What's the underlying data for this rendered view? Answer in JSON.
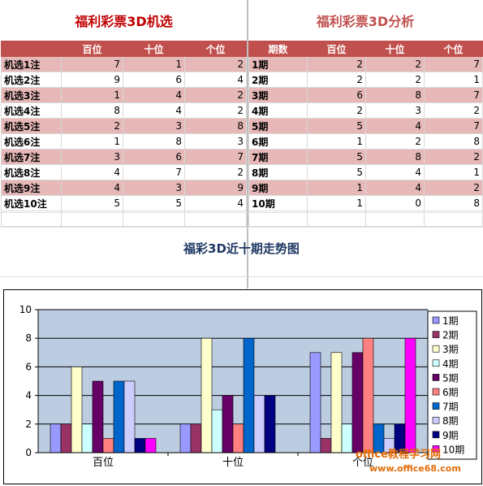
{
  "left_panel": {
    "title": "福利彩票3D机选",
    "columns": [
      "",
      "百位",
      "十位",
      "个位"
    ],
    "rows": [
      {
        "label": "机选1注",
        "values": [
          7,
          1,
          2
        ]
      },
      {
        "label": "机选2注",
        "values": [
          9,
          6,
          4
        ]
      },
      {
        "label": "机选3注",
        "values": [
          1,
          4,
          2
        ]
      },
      {
        "label": "机选4注",
        "values": [
          8,
          4,
          2
        ]
      },
      {
        "label": "机选5注",
        "values": [
          2,
          3,
          8
        ]
      },
      {
        "label": "机选6注",
        "values": [
          1,
          8,
          3
        ]
      },
      {
        "label": "机选7注",
        "values": [
          3,
          6,
          7
        ]
      },
      {
        "label": "机选8注",
        "values": [
          4,
          7,
          2
        ]
      },
      {
        "label": "机选9注",
        "values": [
          4,
          3,
          9
        ]
      },
      {
        "label": "机选10注",
        "values": [
          5,
          5,
          4
        ]
      }
    ]
  },
  "right_panel": {
    "title": "福利彩票3D分析",
    "columns": [
      "期数",
      "百位",
      "十位",
      "个位"
    ],
    "rows": [
      {
        "label": "1期",
        "values": [
          2,
          2,
          7
        ]
      },
      {
        "label": "2期",
        "values": [
          2,
          2,
          1
        ]
      },
      {
        "label": "3期",
        "values": [
          6,
          8,
          7
        ]
      },
      {
        "label": "4期",
        "values": [
          2,
          3,
          2
        ]
      },
      {
        "label": "5期",
        "values": [
          5,
          4,
          7
        ]
      },
      {
        "label": "6期",
        "values": [
          1,
          2,
          8
        ]
      },
      {
        "label": "7期",
        "values": [
          5,
          8,
          2
        ]
      },
      {
        "label": "8期",
        "values": [
          5,
          4,
          1
        ]
      },
      {
        "label": "9期",
        "values": [
          1,
          4,
          2
        ]
      },
      {
        "label": "10期",
        "values": [
          1,
          0,
          8
        ]
      }
    ]
  },
  "chart_title": "福彩3D近十期走势图",
  "chart_data": {
    "type": "bar",
    "categories": [
      "百位",
      "十位",
      "个位"
    ],
    "ylim": [
      0,
      10
    ],
    "yticks": [
      0,
      2,
      4,
      6,
      8,
      10
    ],
    "grid": true,
    "legend_position": "right",
    "series": [
      {
        "name": "1期",
        "values": [
          2,
          2,
          7
        ],
        "color": "#9999ff"
      },
      {
        "name": "2期",
        "values": [
          2,
          2,
          1
        ],
        "color": "#993366"
      },
      {
        "name": "3期",
        "values": [
          6,
          8,
          7
        ],
        "color": "#ffffcc"
      },
      {
        "name": "4期",
        "values": [
          2,
          3,
          2
        ],
        "color": "#ccffff"
      },
      {
        "name": "5期",
        "values": [
          5,
          4,
          7
        ],
        "color": "#660066"
      },
      {
        "name": "6期",
        "values": [
          1,
          2,
          8
        ],
        "color": "#ff8080"
      },
      {
        "name": "7期",
        "values": [
          5,
          8,
          2
        ],
        "color": "#0066cc"
      },
      {
        "name": "8期",
        "values": [
          5,
          4,
          1
        ],
        "color": "#ccccff"
      },
      {
        "name": "9期",
        "values": [
          1,
          4,
          2
        ],
        "color": "#000080"
      },
      {
        "name": "10期",
        "values": [
          1,
          0,
          8
        ],
        "color": "#ff00ff"
      }
    ],
    "plot_background": "#bccde1"
  },
  "watermark": {
    "line1": "office教程学习网",
    "line2": "www.office68.com"
  }
}
